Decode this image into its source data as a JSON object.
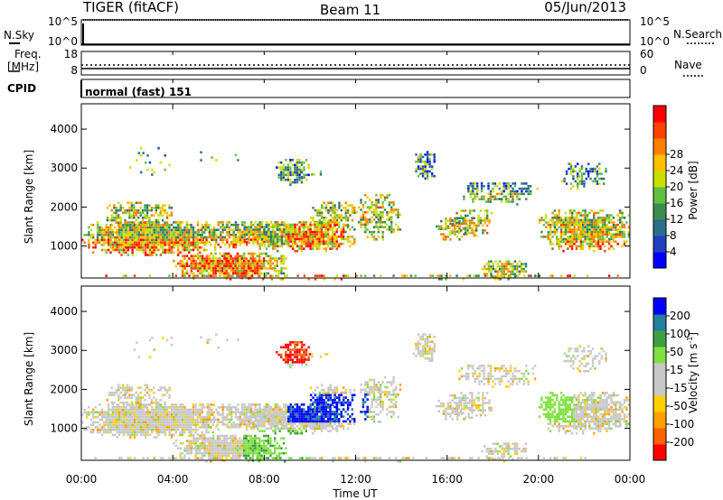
{
  "header": {
    "title": "TIGER (fitACF)",
    "beam": "Beam 11",
    "date": "05/Jun/2013"
  },
  "panels": {
    "nsky": {
      "label": "N.Sky",
      "right_label": "N.Search",
      "tick_top": "10^5",
      "tick_bottom": "10^0",
      "right_tick_top": "10^5",
      "right_tick_bottom": "10^0"
    },
    "freq": {
      "label_line1": "Freq.",
      "label_line2": "[MHz]",
      "right_label": "Nave",
      "tick_top": "18",
      "tick_bottom": "8",
      "right_tick_top": "60",
      "right_tick_bottom": "0"
    },
    "cpid": {
      "label": "CPID",
      "value": "normal (fast) 151"
    }
  },
  "colors": {
    "power_scale": [
      "#0000ff",
      "#2040c0",
      "#2a6e8a",
      "#3c8c50",
      "#60c040",
      "#c8e000",
      "#ffc000",
      "#ff8000",
      "#ff4000",
      "#ff0000"
    ],
    "velocity_scale": [
      "#ff0000",
      "#ff6000",
      "#ffa000",
      "#ffd000",
      "#c8c8c8",
      "#c8c8c8",
      "#80e040",
      "#40a040",
      "#2080a0",
      "#0000ff"
    ]
  },
  "chart_data": [
    {
      "type": "heatmap",
      "name": "power",
      "ylabel": "Slant Range [km]",
      "ylim": [
        180,
        4650
      ],
      "yticks": [
        "1000",
        "2000",
        "3000",
        "4000"
      ],
      "colorbar_label": "Power [dB]",
      "colorbar_ticks": [
        "4",
        "8",
        "12",
        "16",
        "20",
        "24",
        "28"
      ],
      "colorbar_range": [
        0,
        32
      ]
    },
    {
      "type": "heatmap",
      "name": "velocity",
      "ylabel": "Slant Range [km]",
      "ylim": [
        180,
        4650
      ],
      "yticks": [
        "1000",
        "2000",
        "3000",
        "4000"
      ],
      "colorbar_label_main": "Velocity [m s",
      "colorbar_label_sup": "-1",
      "colorbar_label_end": "]",
      "colorbar_ticks": [
        "-200",
        "-100",
        "-50",
        "-15",
        "15",
        "50",
        "100",
        "200"
      ]
    }
  ],
  "xaxis": {
    "label": "Time UT",
    "ticks": [
      "00:00",
      "04:00",
      "08:00",
      "12:00",
      "16:00",
      "20:00",
      "00:00"
    ],
    "range_hours": [
      0,
      24
    ]
  }
}
